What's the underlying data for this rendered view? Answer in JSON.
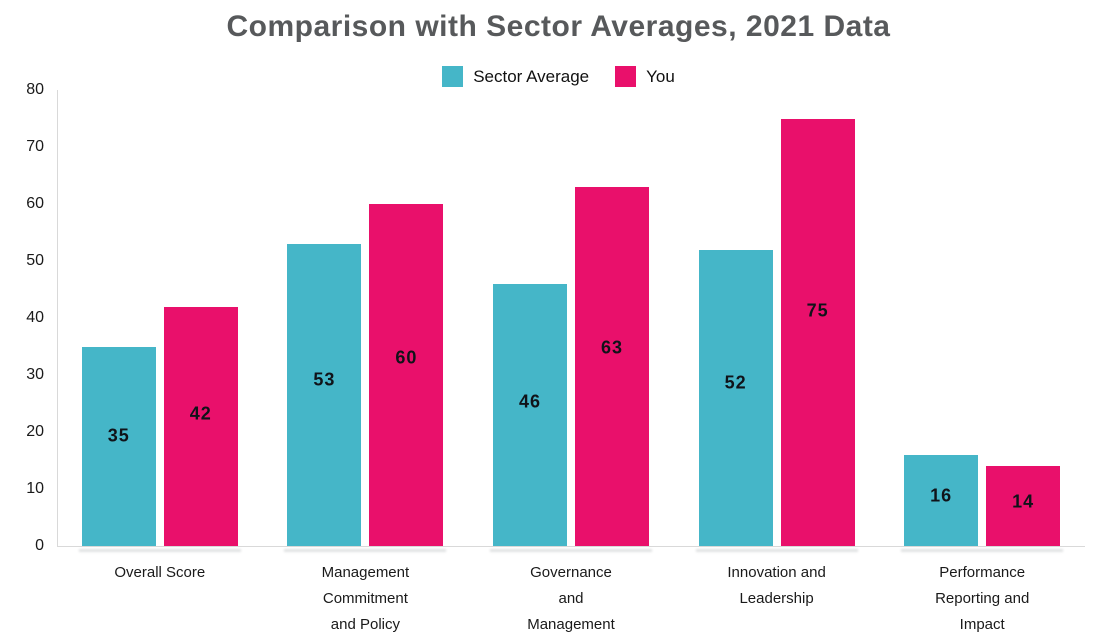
{
  "chart_data": {
    "type": "bar",
    "title": "Comparison with Sector Averages, 2021 Data",
    "categories": [
      "Overall Score",
      "Management Commitment and Policy",
      "Governance and Management",
      "Innovation and Leadership",
      "Performance Reporting and Impact"
    ],
    "categories_lines": [
      [
        "Overall Score"
      ],
      [
        "Management",
        "Commitment",
        "and Policy"
      ],
      [
        "Governance",
        "and",
        "Management"
      ],
      [
        "Innovation and",
        "Leadership"
      ],
      [
        "Performance",
        "Reporting and",
        "Impact"
      ]
    ],
    "series": [
      {
        "name": "Sector Average",
        "color": "#45b6c8",
        "values": [
          35,
          53,
          46,
          52,
          16
        ]
      },
      {
        "name": "You",
        "color": "#e9106b",
        "values": [
          42,
          60,
          63,
          75,
          14
        ]
      }
    ],
    "xlabel": "",
    "ylabel": "",
    "ylim": [
      0,
      80
    ],
    "yticks": [
      0,
      10,
      20,
      30,
      40,
      50,
      60,
      70,
      80
    ],
    "grid": false,
    "legend_position": "top",
    "value_labels_shown": true,
    "colors": {
      "title": "#57595b",
      "axis": "#d9d9d9",
      "tick_label": "#1a1a1a",
      "value_label": "#101319"
    }
  }
}
